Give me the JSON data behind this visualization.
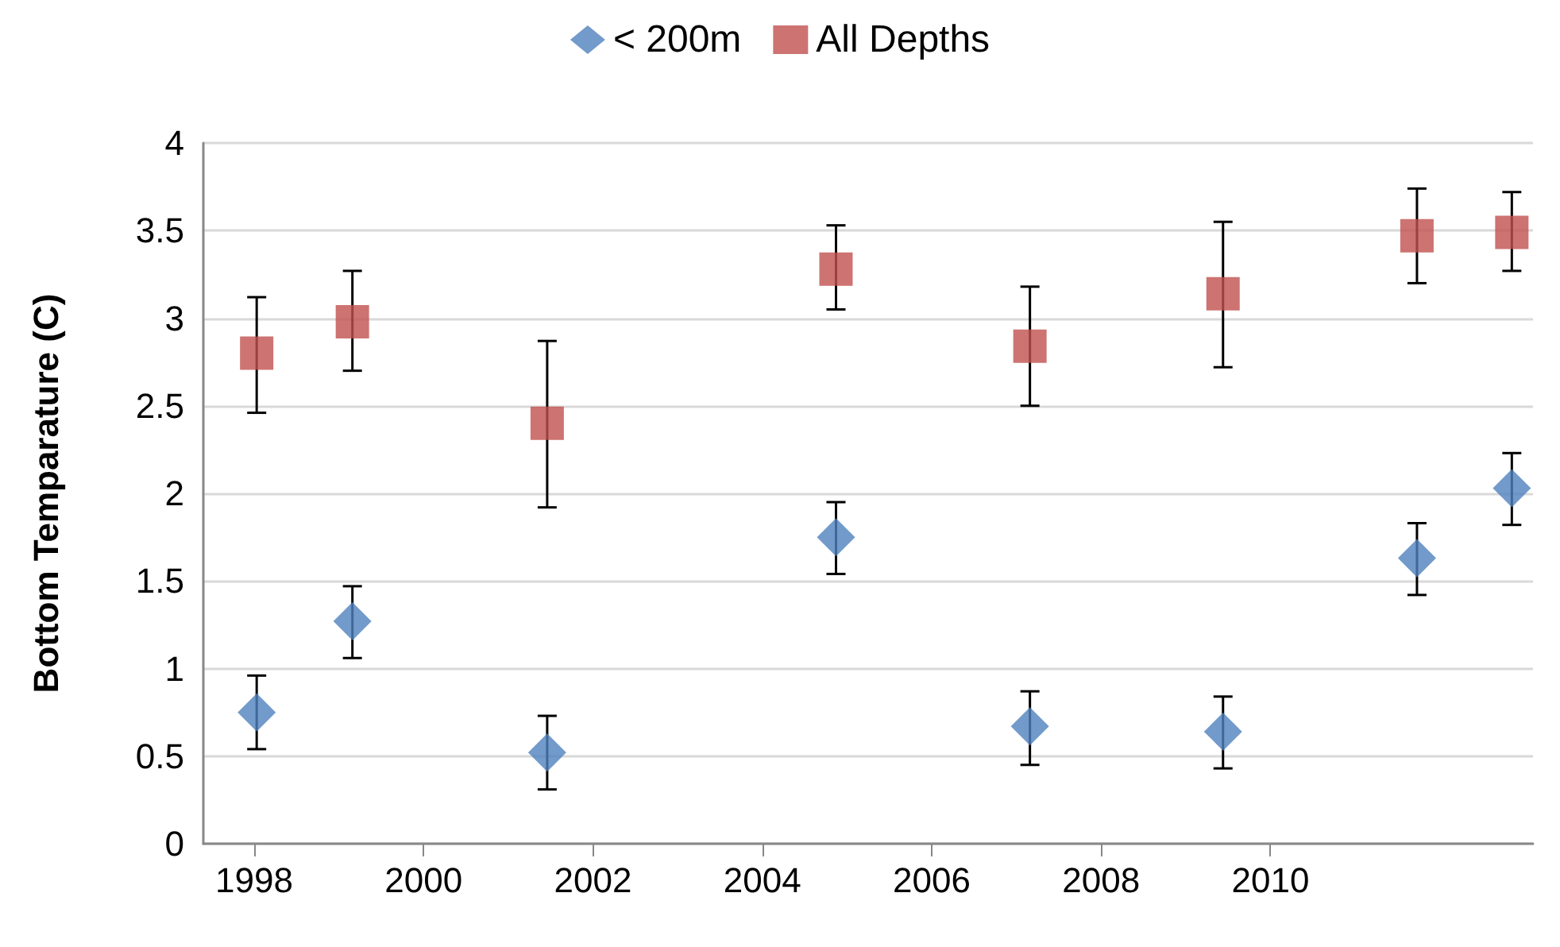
{
  "chart_data": {
    "type": "scatter",
    "ylabel": "Bottom Temparature (C)",
    "x": [
      1998.03,
      1999.16,
      2001.46,
      2004.87,
      2007.16,
      2009.44,
      2011.73,
      2012.85
    ],
    "series": [
      {
        "name": "< 200m",
        "color": "#4f81bd",
        "marker": "diamond",
        "values": [
          0.75,
          1.27,
          0.52,
          1.75,
          0.67,
          0.64,
          1.63,
          2.03
        ],
        "errors": [
          [
            0.54,
            0.96
          ],
          [
            1.06,
            1.47
          ],
          [
            0.31,
            0.73
          ],
          [
            1.54,
            1.95
          ],
          [
            0.45,
            0.87
          ],
          [
            0.43,
            0.84
          ],
          [
            1.42,
            1.83
          ],
          [
            1.82,
            2.23
          ]
        ]
      },
      {
        "name": "All Depths",
        "color": "#c0504d",
        "marker": "square",
        "values": [
          2.8,
          2.98,
          2.4,
          3.28,
          2.84,
          3.14,
          3.47,
          3.49
        ],
        "errors": [
          [
            2.46,
            3.12
          ],
          [
            2.7,
            3.27
          ],
          [
            1.92,
            2.87
          ],
          [
            3.05,
            3.53
          ],
          [
            2.5,
            3.18
          ],
          [
            2.72,
            3.55
          ],
          [
            3.2,
            3.74
          ],
          [
            3.27,
            3.72
          ]
        ]
      }
    ],
    "xlim": [
      1997.4,
      2013.1
    ],
    "xticks": [
      1998,
      2000,
      2002,
      2004,
      2006,
      2008,
      2010
    ],
    "ylim": [
      0,
      4
    ],
    "yticks": [
      0,
      0.5,
      1,
      1.5,
      2,
      2.5,
      3,
      3.5,
      4
    ],
    "grid": "y",
    "legend": "top"
  }
}
